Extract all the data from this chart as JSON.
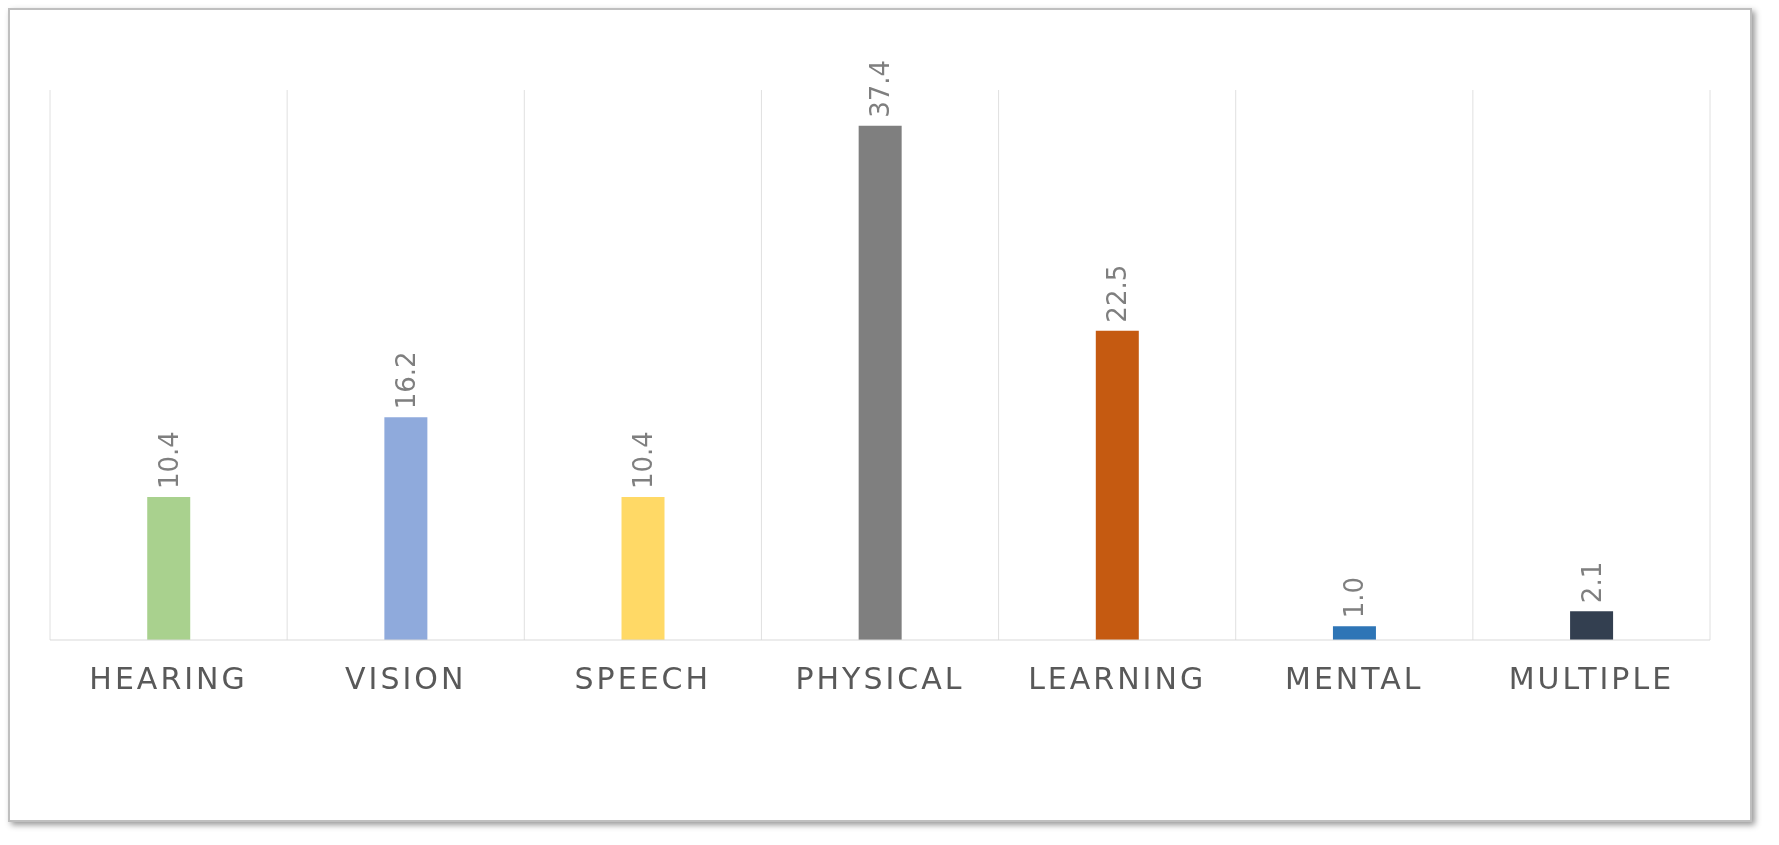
{
  "chart_data": {
    "type": "bar",
    "categories": [
      "HEARING",
      "VISION",
      "SPEECH",
      "PHYSICAL",
      "LEARNING",
      "MENTAL",
      "MULTIPLE"
    ],
    "values": [
      10.4,
      16.2,
      10.4,
      37.4,
      22.5,
      1.0,
      2.1
    ],
    "colors": [
      "#a9d18e",
      "#8faadc",
      "#ffd966",
      "#7f7f7f",
      "#c55a11",
      "#2e75b6",
      "#333f50"
    ],
    "value_labels": [
      "10.4",
      "16.2",
      "10.4",
      "37.4",
      "22.5",
      "1.0",
      "2.1"
    ],
    "grid": "x",
    "tick_labels": "x"
  }
}
